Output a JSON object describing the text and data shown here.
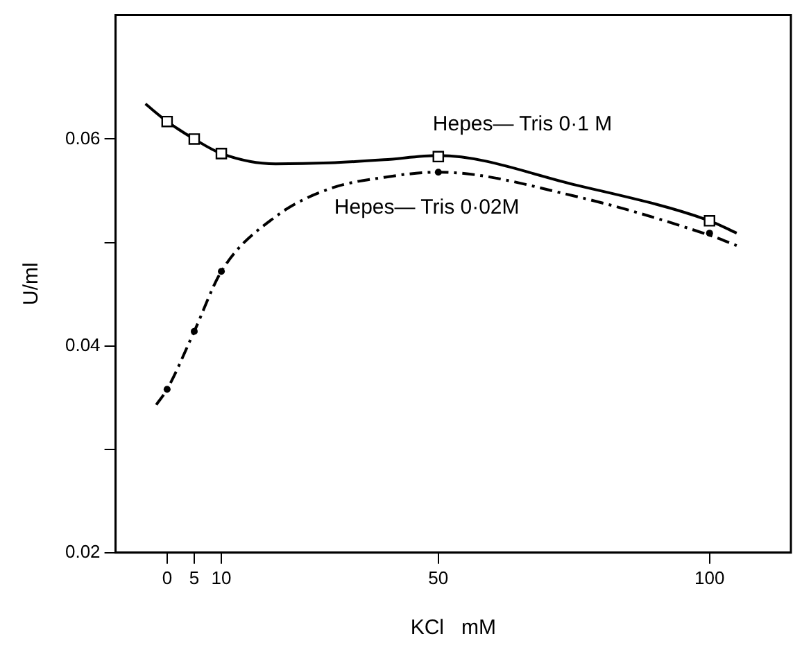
{
  "chart_data": {
    "type": "scatter",
    "xlabel": "KCl   mM",
    "ylabel": "U/ml",
    "xlim": [
      -9.5,
      115
    ],
    "ylim": [
      0.02,
      0.072
    ],
    "xticks": [
      0,
      5,
      10,
      50,
      100
    ],
    "yticks": [
      0.02,
      {
        "value": 0.03,
        "label": null
      },
      0.04,
      {
        "value": 0.05,
        "label": null
      },
      0.06
    ],
    "grid": false,
    "legend": false,
    "series": [
      {
        "name": "Hepes— Tris 0·1 M",
        "marker": "square",
        "color": "#000000",
        "x": [
          0,
          5,
          10,
          50,
          100
        ],
        "values": [
          0.0617,
          0.06,
          0.0586,
          0.0583,
          0.0521
        ]
      },
      {
        "name": "Hepes— Tris 0·02M",
        "marker": "circle",
        "color": "#000000",
        "x": [
          0,
          5,
          10,
          50,
          100
        ],
        "values": [
          0.0358,
          0.0414,
          0.0472,
          0.0568,
          0.0509
        ]
      },
      {
        "type": "line",
        "marker": "none",
        "line_style": "solid",
        "color": "#000000",
        "x": [
          -4,
          0,
          5,
          10,
          20,
          30,
          40,
          50,
          75,
          100,
          105
        ],
        "values": [
          0.0634,
          0.0617,
          0.06,
          0.0586,
          0.0576,
          0.0577,
          0.058,
          0.0584,
          0.0556,
          0.0521,
          0.0509
        ]
      },
      {
        "type": "line",
        "marker": "none",
        "line_style": "dashed",
        "color": "#000000",
        "x": [
          -2,
          0,
          5,
          10,
          20,
          30,
          40,
          50,
          75,
          100,
          105
        ],
        "values": [
          0.0343,
          0.0358,
          0.0414,
          0.0472,
          0.0525,
          0.0552,
          0.0563,
          0.0568,
          0.0545,
          0.0507,
          0.0497
        ]
      }
    ]
  }
}
